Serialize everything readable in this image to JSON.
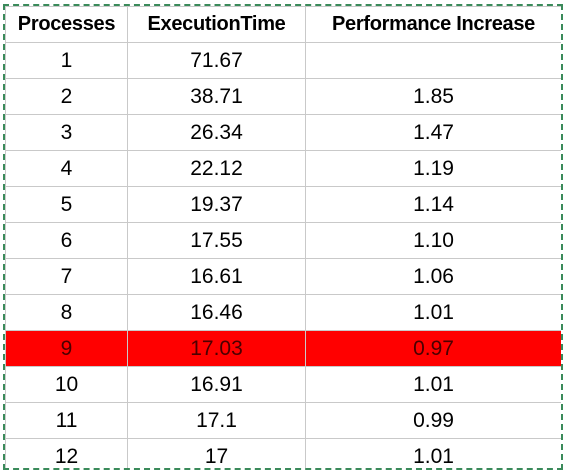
{
  "table": {
    "headers": [
      "Processes",
      "ExecutionTime",
      "Performance Increase"
    ],
    "rows": [
      {
        "processes": "1",
        "execution_time": "71.67",
        "performance_increase": ""
      },
      {
        "processes": "2",
        "execution_time": "38.71",
        "performance_increase": "1.85"
      },
      {
        "processes": "3",
        "execution_time": "26.34",
        "performance_increase": "1.47"
      },
      {
        "processes": "4",
        "execution_time": "22.12",
        "performance_increase": "1.19"
      },
      {
        "processes": "5",
        "execution_time": "19.37",
        "performance_increase": "1.14"
      },
      {
        "processes": "6",
        "execution_time": "17.55",
        "performance_increase": "1.10"
      },
      {
        "processes": "7",
        "execution_time": "16.61",
        "performance_increase": "1.06"
      },
      {
        "processes": "8",
        "execution_time": "16.46",
        "performance_increase": "1.01"
      },
      {
        "processes": "9",
        "execution_time": "17.03",
        "performance_increase": "0.97"
      },
      {
        "processes": "10",
        "execution_time": "16.91",
        "performance_increase": "1.01"
      },
      {
        "processes": "11",
        "execution_time": "17.1",
        "performance_increase": "0.99"
      },
      {
        "processes": "12",
        "execution_time": "17",
        "performance_increase": "1.01"
      }
    ],
    "highlighted_row_index": 8,
    "highlight_color": "#ff0000",
    "selection_border_color": "#3a8a5a",
    "gridline_color": "#c9c9c9"
  }
}
